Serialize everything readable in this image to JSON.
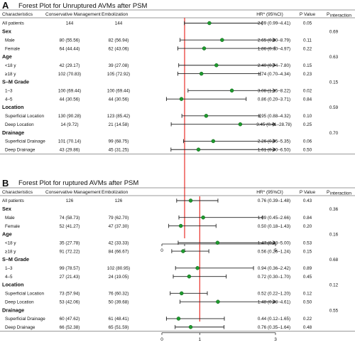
{
  "chart_data": [
    {
      "type": "forest",
      "panel": "A",
      "title": "Forest Plot for Unruptured AVMs after PSM",
      "columns": [
        "Characteristics",
        "Conservative Management",
        "Embolization",
        "HR* (95%CI)",
        "P Value",
        "P",
        "interaction"
      ],
      "xlim": [
        0,
        5
      ],
      "x_ticks": [
        0,
        1,
        5
      ],
      "reference_line": 1,
      "rows": [
        {
          "type": "row",
          "label": "All patients",
          "cm": "144",
          "emb": "144",
          "hr_text": "2.09 (0.99–4.41)",
          "p": "0.05",
          "p_int": "",
          "hr": 2.09,
          "lo": 0.99,
          "hi": 4.41
        },
        {
          "type": "section",
          "label": "Sex",
          "p_int": "0.69"
        },
        {
          "type": "row",
          "label": "Male",
          "cm": "80 (55.56)",
          "emb": "82 (56.94)",
          "hr_text": "2.65 (0.80–8.79)",
          "p": "0.11",
          "p_int": "",
          "hr": 2.65,
          "lo": 0.8,
          "hi": 8.79
        },
        {
          "type": "row",
          "label": "Female",
          "cm": "64 (44.44)",
          "emb": "62 (43.06)",
          "hr_text": "1.86 (0.70–4.97)",
          "p": "0.22",
          "p_int": "",
          "hr": 1.86,
          "lo": 0.7,
          "hi": 4.97
        },
        {
          "type": "section",
          "label": "Age",
          "p_int": "0.63"
        },
        {
          "type": "row",
          "label": "<18 y",
          "cm": "42 (29.17)",
          "emb": "39 (27.08)",
          "hr_text": "2.40 (0.74–7.80)",
          "p": "0.15",
          "p_int": "",
          "hr": 2.4,
          "lo": 0.74,
          "hi": 7.8
        },
        {
          "type": "row",
          "label": "≥18 y",
          "cm": "102 (70.83)",
          "emb": "105 (72.92)",
          "hr_text": "1.74 (0.70–4.34)",
          "p": "0.23",
          "p_int": "",
          "hr": 1.74,
          "lo": 0.7,
          "hi": 4.34
        },
        {
          "type": "section",
          "label": "S–M Grade",
          "p_int": "0.15"
        },
        {
          "type": "row",
          "label": "1–3",
          "cm": "100 (69.44)",
          "emb": "100 (69.44)",
          "hr_text": "3.08 (1.15–8.22)",
          "p": "0.02",
          "p_int": "",
          "hr": 3.08,
          "lo": 1.15,
          "hi": 8.22
        },
        {
          "type": "row",
          "label": "4–5",
          "cm": "44 (30.56)",
          "emb": "44 (30.56)",
          "hr_text": "0.86 (0.20–3.71)",
          "p": "0.84",
          "p_int": "",
          "hr": 0.86,
          "lo": 0.2,
          "hi": 3.71
        },
        {
          "type": "section",
          "label": "Location",
          "p_int": "0.59"
        },
        {
          "type": "row",
          "label": "Superficial Location",
          "cm": "130 (90.28)",
          "emb": "123 (85.42)",
          "hr_text": "1.95 (0.88–4.32)",
          "p": "0.10",
          "p_int": "",
          "hr": 1.95,
          "lo": 0.88,
          "hi": 4.32
        },
        {
          "type": "row",
          "label": "Deep Location",
          "cm": "14 (9.72)",
          "emb": "21 (14.58)",
          "hr_text": "3.45 (0.41–28.78)",
          "p": "0.25",
          "p_int": "",
          "hr": 3.45,
          "lo": 0.41,
          "hi": 28.78
        },
        {
          "type": "section",
          "label": "Drainage",
          "p_int": "0.70"
        },
        {
          "type": "row",
          "label": "Superficial Drainage",
          "cm": "101 (70.14)",
          "emb": "99 (68.75)",
          "hr_text": "2.26 (0.95–5.35)",
          "p": "0.06",
          "p_int": "",
          "hr": 2.26,
          "lo": 0.95,
          "hi": 5.35
        },
        {
          "type": "row",
          "label": "Deep Drainage",
          "cm": "43 (29.86)",
          "emb": "45 (31.25)",
          "hr_text": "1.61 (0.40–6.50)",
          "p": "0.50",
          "p_int": "",
          "hr": 1.61,
          "lo": 0.4,
          "hi": 6.5
        }
      ]
    },
    {
      "type": "forest",
      "panel": "B",
      "title": "Forest Plot for ruptured AVMs after PSM",
      "columns": [
        "Characteristics",
        "Conservative Management",
        "Embolization",
        "HR* (95%CI)",
        "P Value",
        "P",
        "interaction"
      ],
      "xlim": [
        0,
        3
      ],
      "x_ticks": [
        0,
        1,
        3
      ],
      "reference_line": 1,
      "rows": [
        {
          "type": "row",
          "label": "All patients",
          "cm": "126",
          "emb": "126",
          "hr_text": "0.76 (0.39–1.48)",
          "p": "0.43",
          "p_int": "",
          "hr": 0.76,
          "lo": 0.39,
          "hi": 1.48
        },
        {
          "type": "section",
          "label": "Sex",
          "p_int": "0.36"
        },
        {
          "type": "row",
          "label": "Male",
          "cm": "74 (58.73)",
          "emb": "79 (62.70)",
          "hr_text": "1.09 (0.45–2.66)",
          "p": "0.84",
          "p_int": "",
          "hr": 1.09,
          "lo": 0.45,
          "hi": 2.66
        },
        {
          "type": "row",
          "label": "Female",
          "cm": "52 (41.27)",
          "emb": "47 (37.30)",
          "hr_text": "0.50 (0.18–1.43)",
          "p": "0.20",
          "p_int": "",
          "hr": 0.5,
          "lo": 0.18,
          "hi": 1.43
        },
        {
          "type": "section",
          "label": "Age",
          "p_int": "0.16"
        },
        {
          "type": "row",
          "label": "<18 y",
          "cm": "35 (27.78)",
          "emb": "42 (33.33)",
          "hr_text": "1.47 (0.43–5.00)",
          "p": "0.53",
          "p_int": "",
          "hr": 1.47,
          "lo": 0.43,
          "hi": 5.0
        },
        {
          "type": "row",
          "label": "≥18 y",
          "cm": "91 (72.22)",
          "emb": "84 (66.67)",
          "hr_text": "0.56 (0.26–1.24)",
          "p": "0.15",
          "p_int": "",
          "hr": 0.56,
          "lo": 0.26,
          "hi": 1.24
        },
        {
          "type": "section",
          "label": "S–M Grade",
          "p_int": "0.68"
        },
        {
          "type": "row",
          "label": "1–3",
          "cm": "99 (78.57)",
          "emb": "102 (80.95)",
          "hr_text": "0.94 (0.36–2.42)",
          "p": "0.89",
          "p_int": "",
          "hr": 0.94,
          "lo": 0.36,
          "hi": 2.42
        },
        {
          "type": "row",
          "label": "4–5",
          "cm": "27 (21.43)",
          "emb": "24 (19.05)",
          "hr_text": "0.72 (0.30–1.70)",
          "p": "0.45",
          "p_int": "",
          "hr": 0.72,
          "lo": 0.3,
          "hi": 1.7
        },
        {
          "type": "section",
          "label": "Location",
          "p_int": "0.12"
        },
        {
          "type": "row",
          "label": "Superficial Location",
          "cm": "73 (57.94)",
          "emb": "76 (60.32)",
          "hr_text": "0.52 (0.22–1.20)",
          "p": "0.12",
          "p_int": "",
          "hr": 0.52,
          "lo": 0.22,
          "hi": 1.2
        },
        {
          "type": "row",
          "label": "Deep Location",
          "cm": "53 (42.06)",
          "emb": "50 (39.68)",
          "hr_text": "1.48 (0.48–4.61)",
          "p": "0.50",
          "p_int": "",
          "hr": 1.48,
          "lo": 0.48,
          "hi": 4.61
        },
        {
          "type": "section",
          "label": "Drainage",
          "p_int": "0.55"
        },
        {
          "type": "row",
          "label": "Superficial Drainage",
          "cm": "60 (47.62)",
          "emb": "61 (48.41)",
          "hr_text": "0.44 (0.12–1.65)",
          "p": "0.22",
          "p_int": "",
          "hr": 0.44,
          "lo": 0.12,
          "hi": 1.65
        },
        {
          "type": "row",
          "label": "Deep Drainage",
          "cm": "66 (52.38)",
          "emb": "65 (51.59)",
          "hr_text": "0.76 (0.35–1.64)",
          "p": "0.48",
          "p_int": "",
          "hr": 0.76,
          "lo": 0.35,
          "hi": 1.64
        }
      ]
    }
  ],
  "colors": {
    "reference_line": "#e8302a",
    "point": "#1e9a2e",
    "point_stroke": "#0d5a15",
    "ci_line": "#222222",
    "text": "#111111"
  }
}
